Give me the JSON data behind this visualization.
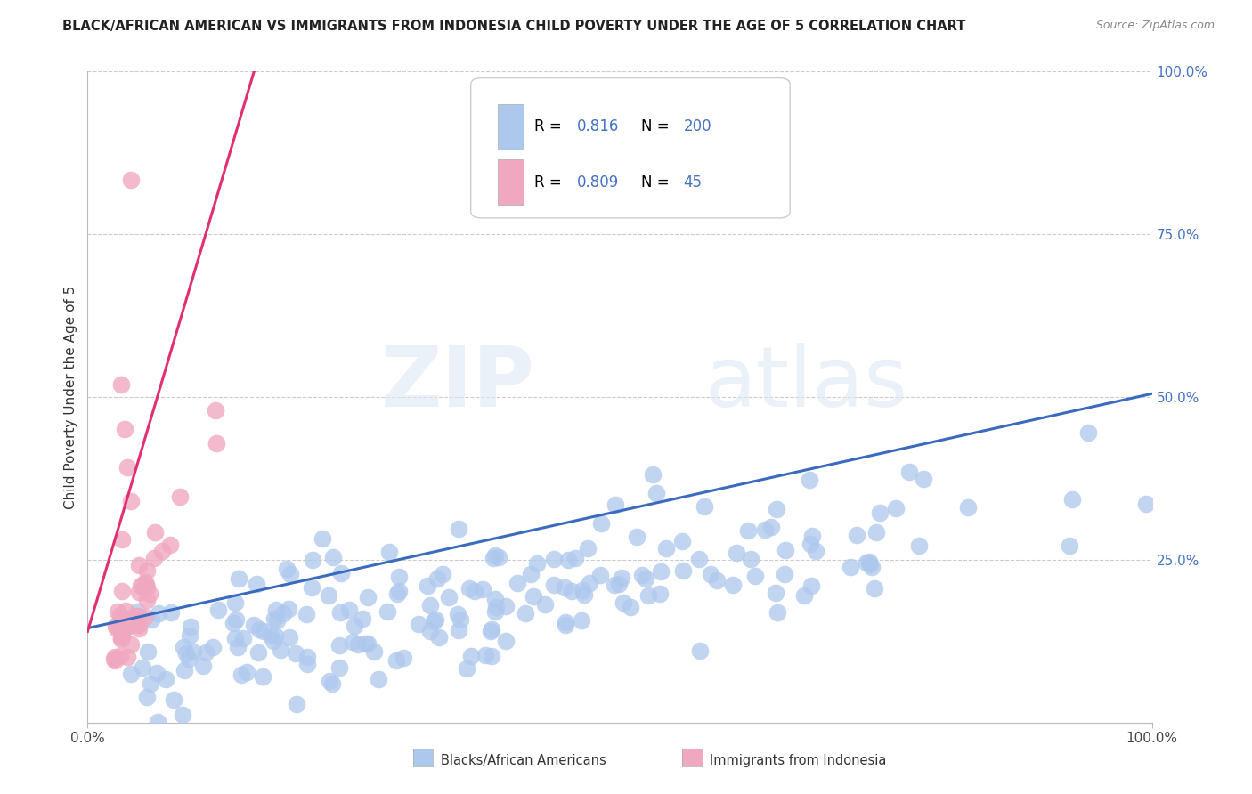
{
  "title": "BLACK/AFRICAN AMERICAN VS IMMIGRANTS FROM INDONESIA CHILD POVERTY UNDER THE AGE OF 5 CORRELATION CHART",
  "source": "Source: ZipAtlas.com",
  "ylabel": "Child Poverty Under the Age of 5",
  "xlabel": "",
  "xlim": [
    0,
    1.0
  ],
  "ylim": [
    0,
    1.0
  ],
  "ytick_positions": [
    0.25,
    0.5,
    0.75,
    1.0
  ],
  "ytick_labels": [
    "25.0%",
    "50.0%",
    "75.0%",
    "100.0%"
  ],
  "blue_R": 0.816,
  "blue_N": 200,
  "pink_R": 0.809,
  "pink_N": 45,
  "blue_color": "#adc8ed",
  "pink_color": "#f0a8c0",
  "blue_line_color": "#3a6bbf",
  "pink_line_color": "#e03070",
  "watermark_zip": "ZIP",
  "watermark_atlas": "atlas",
  "legend_blue_label": "Blacks/African Americans",
  "legend_pink_label": "Immigrants from Indonesia",
  "background_color": "#ffffff",
  "grid_color": "#cccccc",
  "title_color": "#222222",
  "source_color": "#888888",
  "yticklabel_color": "#4472c4",
  "xticklabel_color": "#444444"
}
